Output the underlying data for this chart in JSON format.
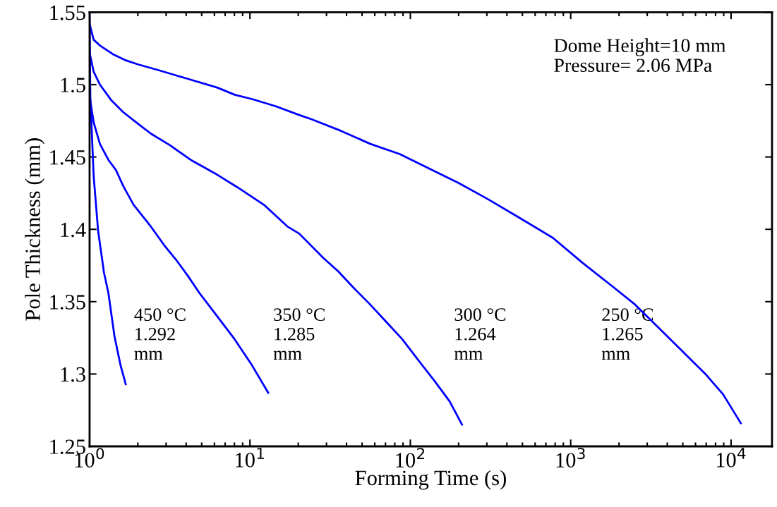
{
  "chart_data": {
    "type": "line",
    "xlabel": "Forming Time (s)",
    "ylabel": "Pole Thickness (mm)",
    "log": "x",
    "xlim": [
      1,
      18000
    ],
    "ylim": [
      1.25,
      1.55
    ],
    "xticks": [
      {
        "value": 1,
        "label": "10$^{0}$"
      },
      {
        "value": 10,
        "label": "10$^{1}$"
      },
      {
        "value": 100,
        "label": "10$^{2}$"
      },
      {
        "value": 1000,
        "label": "10$^{3}$"
      },
      {
        "value": 10000,
        "label": "10$^{4}$"
      }
    ],
    "yticks": [
      1.25,
      1.3,
      1.35,
      1.4,
      1.45,
      1.5,
      1.55
    ],
    "grid": false,
    "marker": "none",
    "line_style": "solid",
    "series": [
      {
        "color": "#0000ff",
        "x": [
          1,
          1.01,
          1.06,
          1.13,
          1.23,
          1.31,
          1.43,
          1.56,
          1.68
        ],
        "values": [
          1.55,
          1.492,
          1.437,
          1.399,
          1.37,
          1.356,
          1.326,
          1.306,
          1.293
        ]
      },
      {
        "color": "#0000ff",
        "x": [
          1,
          1.06,
          1.16,
          1.31,
          1.46,
          1.62,
          1.88,
          2.37,
          2.92,
          3.46,
          4.09,
          4.84,
          6.24,
          8.03,
          10.3,
          13.0
        ],
        "values": [
          1.492,
          1.474,
          1.459,
          1.448,
          1.441,
          1.43,
          1.417,
          1.403,
          1.389,
          1.379,
          1.368,
          1.356,
          1.34,
          1.324,
          1.306,
          1.287
        ]
      },
      {
        "color": "#0000ff",
        "x": [
          1,
          1.06,
          1.16,
          1.37,
          1.62,
          2.0,
          2.42,
          3.18,
          4.27,
          5.98,
          8.37,
          12.2,
          17.1,
          20.3,
          28.8,
          35.5,
          43.9,
          55.1,
          69.5,
          89.1,
          115,
          142,
          176,
          210
        ],
        "values": [
          1.522,
          1.509,
          1.5,
          1.489,
          1.481,
          1.473,
          1.466,
          1.458,
          1.448,
          1.439,
          1.429,
          1.417,
          1.402,
          1.397,
          1.38,
          1.371,
          1.36,
          1.349,
          1.337,
          1.324,
          1.308,
          1.295,
          1.281,
          1.265
        ]
      },
      {
        "color": "#0000ff",
        "x": [
          1,
          1.06,
          1.16,
          1.4,
          1.66,
          2.0,
          2.69,
          4.09,
          6.24,
          8.03,
          10.3,
          14.5,
          20.3,
          24.3,
          37.0,
          56.4,
          85.9,
          131,
          200,
          303,
          462,
          776,
          1180,
          1800,
          2520,
          3530,
          4940,
          6920,
          8910,
          11500
        ],
        "values": [
          1.542,
          1.531,
          1.527,
          1.521,
          1.517,
          1.514,
          1.51,
          1.504,
          1.498,
          1.493,
          1.49,
          1.485,
          1.479,
          1.476,
          1.468,
          1.459,
          1.452,
          1.442,
          1.432,
          1.421,
          1.409,
          1.394,
          1.377,
          1.361,
          1.348,
          1.332,
          1.316,
          1.3,
          1.286,
          1.266
        ]
      }
    ],
    "annotations": [
      "Dome Height=10 mm\nPressure= 2.06 MPa",
      "450 °C\n1.292\nmm",
      "350 °C\n1.285\nmm",
      "300 °C\n1.264\nmm",
      "250 °C\n1.265\nmm"
    ]
  }
}
